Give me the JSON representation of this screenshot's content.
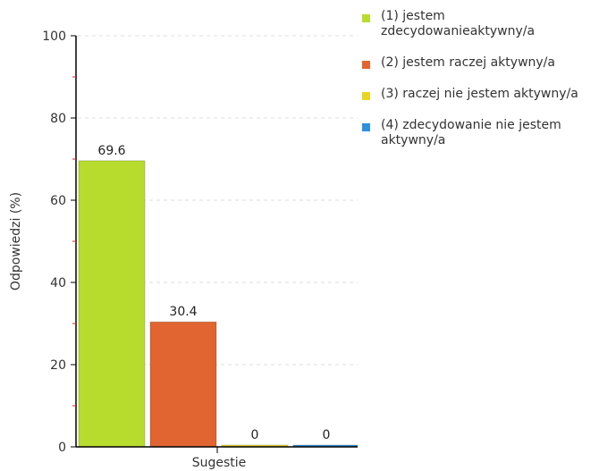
{
  "chart_data": {
    "type": "bar",
    "xlabel": "Sugestie",
    "ylabel": "Odpowiedzi (%)",
    "ylim": [
      0,
      100
    ],
    "yticks": [
      0,
      20,
      40,
      60,
      80,
      100
    ],
    "grid": true,
    "legend_position": "right",
    "series": [
      {
        "name": "(1) jestem zdecydowanieaktywny/a",
        "value": 69.6,
        "value_label": "69.6",
        "color": "#b8dc2e"
      },
      {
        "name": "(2) jestem raczej aktywny/a",
        "value": 30.4,
        "value_label": "30.4",
        "color": "#e06530"
      },
      {
        "name": "(3) raczej nie jestem aktywny/a",
        "value": 0,
        "value_label": "0",
        "color": "#e8d523"
      },
      {
        "name": "(4) zdecydowanie nie jestem aktywny/a",
        "value": 0,
        "value_label": "0",
        "color": "#2f8fdb"
      }
    ]
  }
}
